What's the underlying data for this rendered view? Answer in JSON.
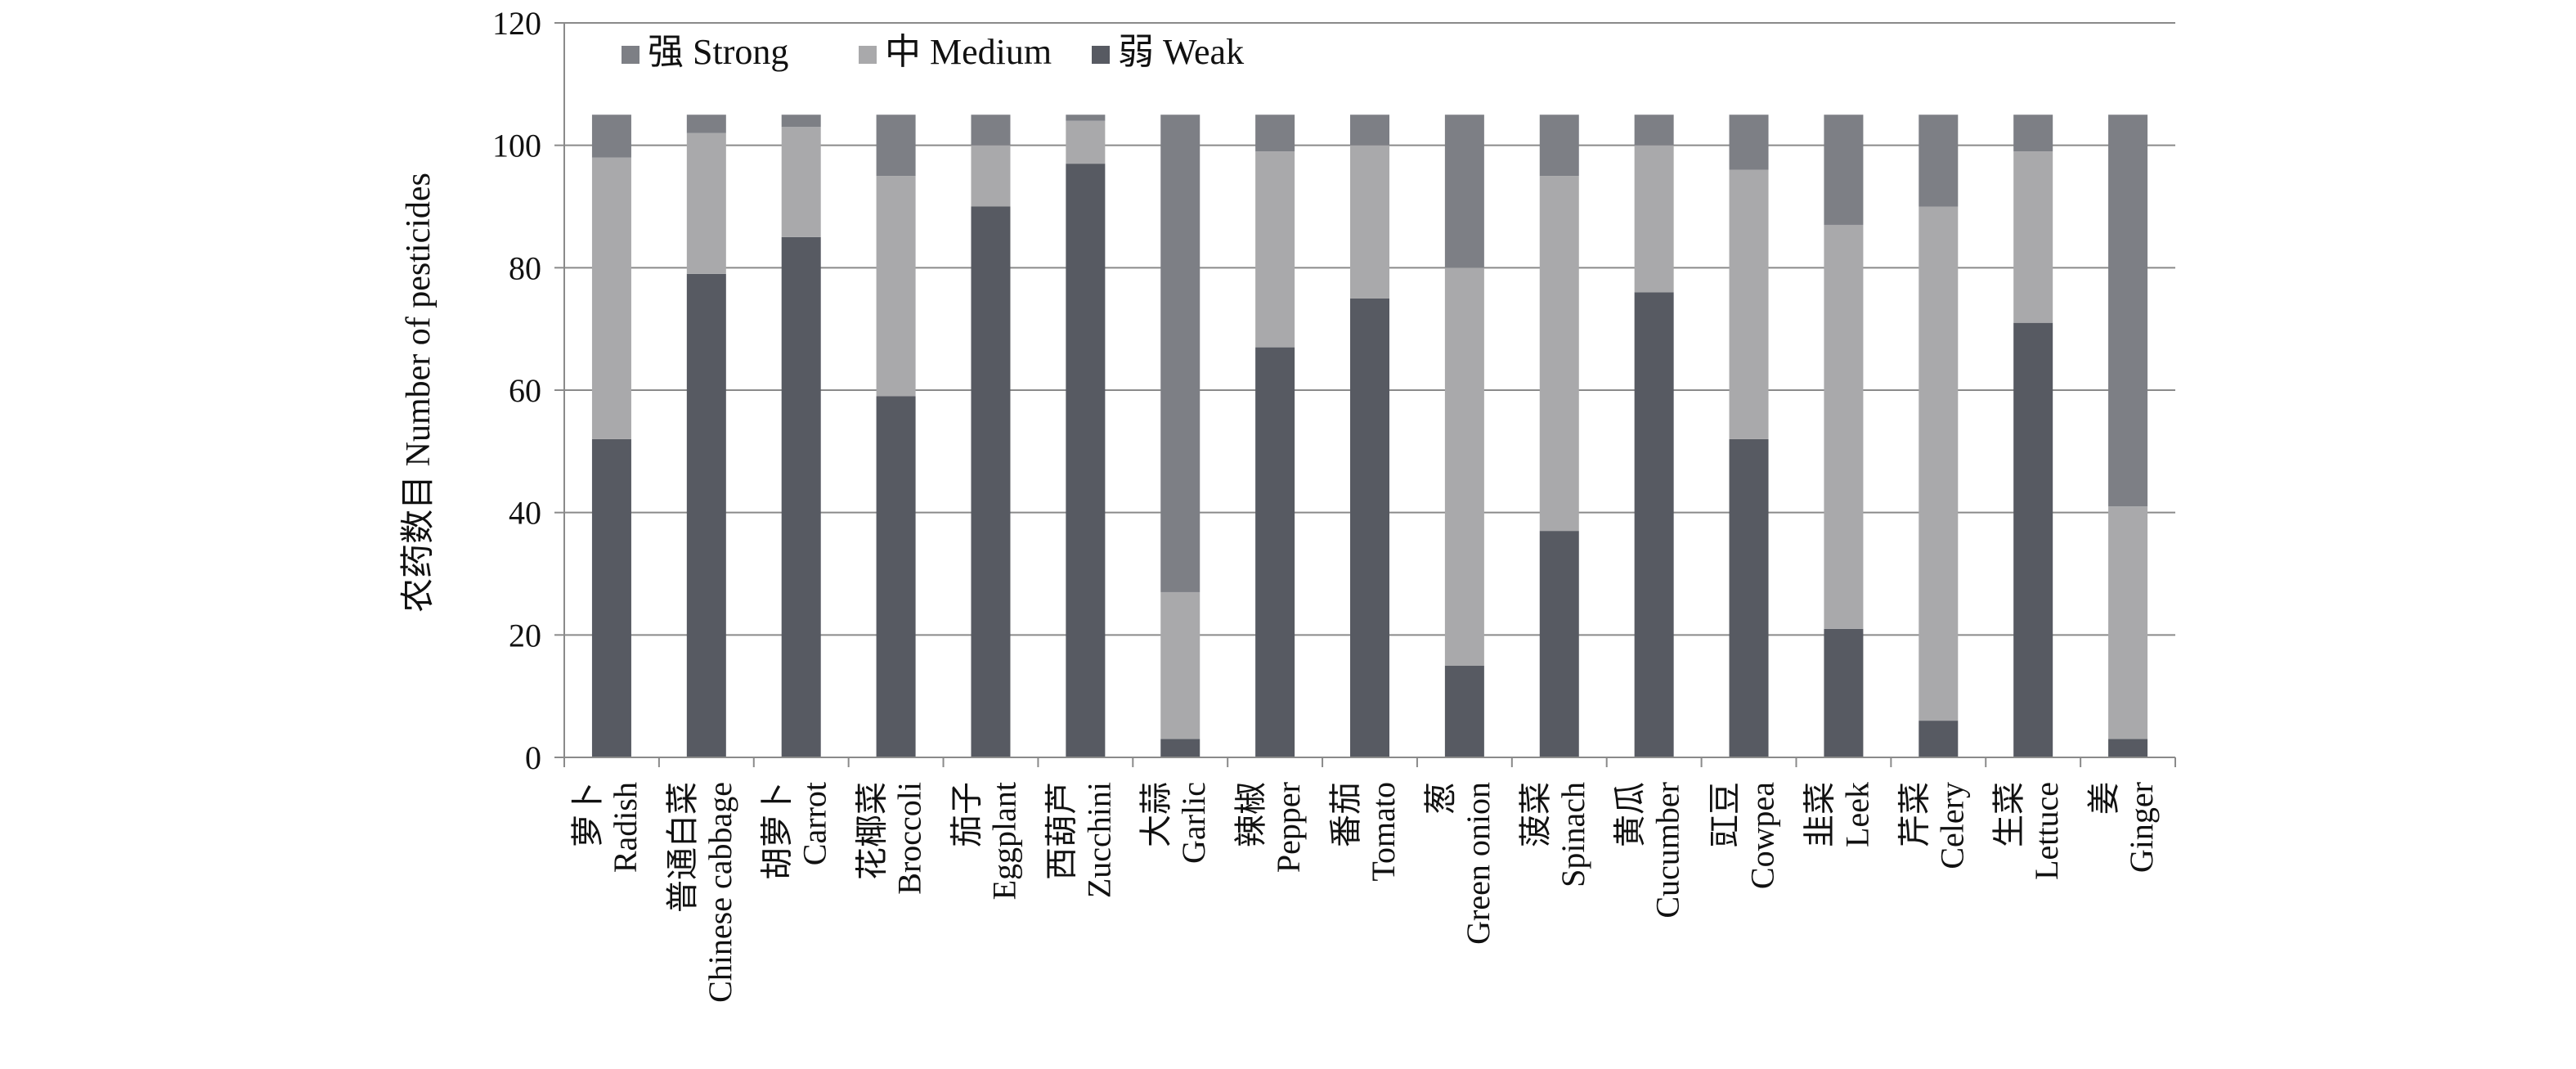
{
  "chart_data": {
    "type": "bar",
    "stacked": true,
    "ylabel": "农药数目 Number of pesticides",
    "xlabel": "",
    "ylim": [
      0,
      120
    ],
    "yticks": [
      0,
      20,
      40,
      60,
      80,
      100,
      120
    ],
    "grid": true,
    "legend_position": "top-left",
    "categories": [
      "萝卜 Radish",
      "普通白菜 Chinese cabbage",
      "胡萝卜 Carrot",
      "花椰菜 Broccoli",
      "茄子 Eggplant",
      "西葫芦 Zucchini",
      "大蒜 Garlic",
      "辣椒 Pepper",
      "番茄 Tomato",
      "葱 Green onion",
      "菠菜 Spinach",
      "黄瓜 Cucumber",
      "豇豆 Cowpea",
      "韭菜 Leek",
      "芹菜 Celery",
      "生菜 Lettuce",
      "姜 Ginger"
    ],
    "category_lines": [
      [
        "萝卜",
        "Radish"
      ],
      [
        "普通白菜",
        "Chinese cabbage"
      ],
      [
        "胡萝卜",
        "Carrot"
      ],
      [
        "花椰菜",
        "Broccoli"
      ],
      [
        "茄子",
        "Eggplant"
      ],
      [
        "西葫芦",
        "Zucchini"
      ],
      [
        "大蒜",
        "Garlic"
      ],
      [
        "辣椒",
        "Pepper"
      ],
      [
        "番茄",
        "Tomato"
      ],
      [
        "葱",
        "Green onion"
      ],
      [
        "菠菜",
        "Spinach"
      ],
      [
        "黄瓜",
        "Cucumber"
      ],
      [
        "豇豆",
        "Cowpea"
      ],
      [
        "韭菜",
        "Leek"
      ],
      [
        "芹菜",
        "Celery"
      ],
      [
        "生菜",
        "Lettuce"
      ],
      [
        "姜",
        "Ginger"
      ]
    ],
    "series": [
      {
        "name": "弱 Weak",
        "color": "#575a62",
        "values": [
          52,
          79,
          85,
          59,
          90,
          97,
          3,
          67,
          75,
          15,
          37,
          76,
          52,
          21,
          6,
          71,
          3
        ]
      },
      {
        "name": "中 Medium",
        "color": "#a9a9ab",
        "values": [
          46,
          23,
          18,
          36,
          10,
          7,
          24,
          32,
          25,
          65,
          58,
          24,
          44,
          66,
          84,
          28,
          38
        ]
      },
      {
        "name": "强 Strong",
        "color": "#7d7f85",
        "values": [
          7,
          3,
          2,
          10,
          5,
          1,
          78,
          6,
          5,
          25,
          10,
          5,
          9,
          18,
          15,
          6,
          64
        ]
      }
    ],
    "legend_order": [
      "强 Strong",
      "中 Medium",
      "弱 Weak"
    ]
  }
}
